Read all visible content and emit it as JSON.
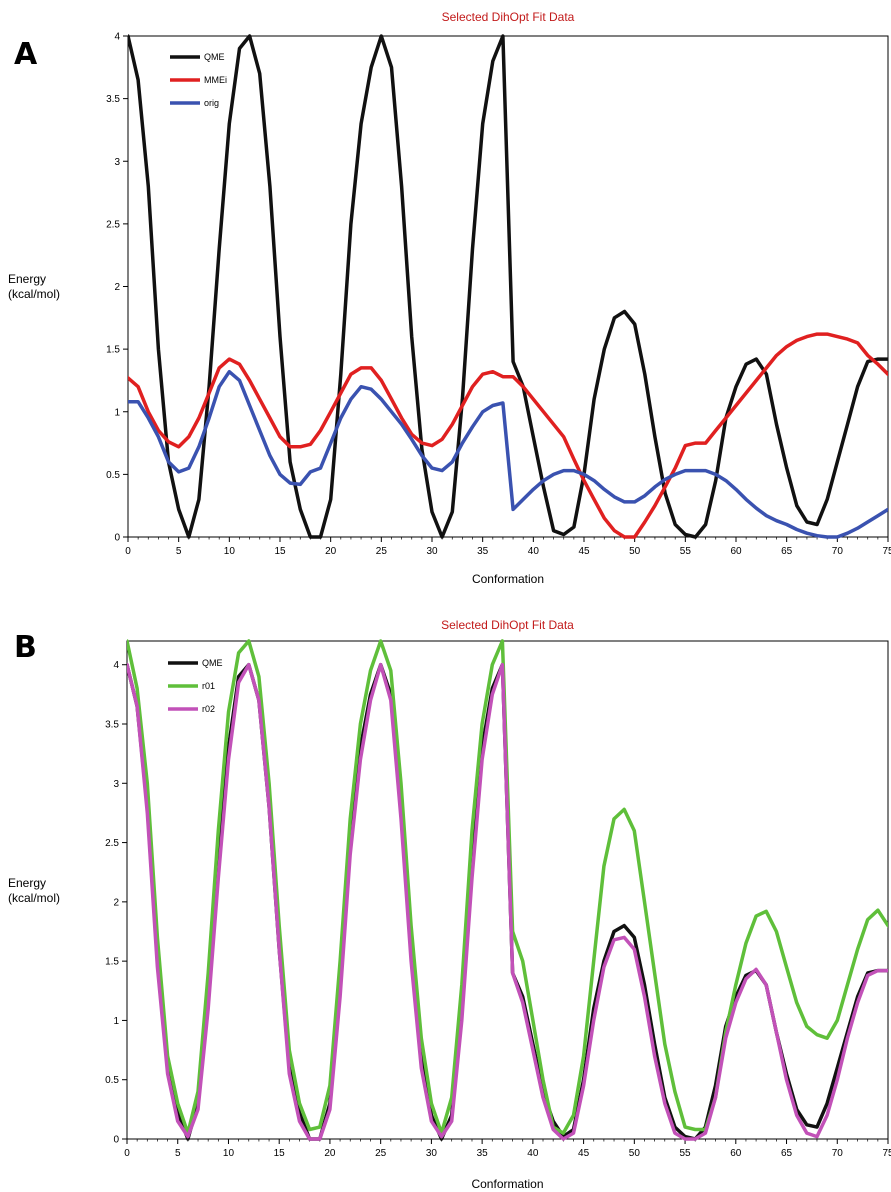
{
  "chart_data": [
    {
      "panel": "A",
      "type": "line",
      "title": "Selected DihOpt Fit Data",
      "xlabel": "Conformation",
      "ylabel": [
        "Energy",
        "(kcal/mol)"
      ],
      "xlim": [
        0,
        75
      ],
      "ylim": [
        0,
        4
      ],
      "xticks": [
        "0",
        "5",
        "10",
        "15",
        "20",
        "25",
        "30",
        "35",
        "40",
        "45",
        "50",
        "55",
        "60",
        "65",
        "70",
        "75"
      ],
      "yticks": [
        "0",
        "0.5",
        "1",
        "1.5",
        "2",
        "2.5",
        "3",
        "3.5",
        "4"
      ],
      "legend_position": "top-left",
      "series": [
        {
          "name": "QME",
          "color": "#111111",
          "x": [
            0,
            1,
            2,
            3,
            4,
            5,
            6,
            7,
            8,
            9,
            10,
            11,
            12,
            13,
            14,
            15,
            16,
            17,
            18,
            19,
            20,
            21,
            22,
            23,
            24,
            25,
            26,
            27,
            28,
            29,
            30,
            31,
            32,
            33,
            34,
            35,
            36,
            37,
            38,
            39,
            40,
            41,
            42,
            43,
            44,
            45,
            46,
            47,
            48,
            49,
            50,
            51,
            52,
            53,
            54,
            55,
            56,
            57,
            58,
            59,
            60,
            61,
            62,
            63,
            64,
            65,
            66,
            67,
            68,
            69,
            70,
            71,
            72,
            73,
            74,
            75
          ],
          "y": [
            4.0,
            3.65,
            2.8,
            1.5,
            0.6,
            0.22,
            0.0,
            0.3,
            1.2,
            2.3,
            3.3,
            3.9,
            4.0,
            3.7,
            2.8,
            1.6,
            0.6,
            0.22,
            0.0,
            0.0,
            0.3,
            1.3,
            2.5,
            3.3,
            3.75,
            4.0,
            3.75,
            2.8,
            1.6,
            0.7,
            0.2,
            0.0,
            0.2,
            1.1,
            2.3,
            3.3,
            3.8,
            4.0,
            1.4,
            1.2,
            0.8,
            0.4,
            0.05,
            0.02,
            0.08,
            0.5,
            1.1,
            1.5,
            1.75,
            1.8,
            1.7,
            1.3,
            0.8,
            0.35,
            0.1,
            0.02,
            0.0,
            0.1,
            0.45,
            0.95,
            1.2,
            1.38,
            1.42,
            1.3,
            0.9,
            0.55,
            0.25,
            0.12,
            0.1,
            0.3,
            0.6,
            0.9,
            1.2,
            1.4,
            1.42,
            1.42
          ]
        },
        {
          "name": "MMEi",
          "color": "#e02020",
          "x": [
            0,
            1,
            2,
            3,
            4,
            5,
            6,
            7,
            8,
            9,
            10,
            11,
            12,
            13,
            14,
            15,
            16,
            17,
            18,
            19,
            20,
            21,
            22,
            23,
            24,
            25,
            26,
            27,
            28,
            29,
            30,
            31,
            32,
            33,
            34,
            35,
            36,
            37,
            38,
            39,
            40,
            41,
            42,
            43,
            44,
            45,
            46,
            47,
            48,
            49,
            50,
            51,
            52,
            53,
            54,
            55,
            56,
            57,
            58,
            59,
            60,
            61,
            62,
            63,
            64,
            65,
            66,
            67,
            68,
            69,
            70,
            71,
            72,
            73,
            74,
            75
          ],
          "y": [
            1.27,
            1.2,
            1.0,
            0.85,
            0.76,
            0.72,
            0.8,
            0.95,
            1.15,
            1.35,
            1.42,
            1.38,
            1.25,
            1.1,
            0.95,
            0.8,
            0.72,
            0.72,
            0.74,
            0.85,
            1.0,
            1.15,
            1.3,
            1.35,
            1.35,
            1.25,
            1.1,
            0.95,
            0.82,
            0.75,
            0.73,
            0.78,
            0.9,
            1.05,
            1.2,
            1.3,
            1.32,
            1.28,
            1.28,
            1.2,
            1.1,
            1.0,
            0.9,
            0.8,
            0.62,
            0.45,
            0.3,
            0.15,
            0.05,
            0.0,
            0.0,
            0.12,
            0.25,
            0.4,
            0.55,
            0.73,
            0.75,
            0.75,
            0.85,
            0.95,
            1.05,
            1.15,
            1.25,
            1.35,
            1.45,
            1.52,
            1.57,
            1.6,
            1.62,
            1.62,
            1.6,
            1.58,
            1.55,
            1.45,
            1.38,
            1.3
          ]
        },
        {
          "name": "orig",
          "color": "#3a52b0",
          "x": [
            0,
            1,
            2,
            3,
            4,
            5,
            6,
            7,
            8,
            9,
            10,
            11,
            12,
            13,
            14,
            15,
            16,
            17,
            18,
            19,
            20,
            21,
            22,
            23,
            24,
            25,
            26,
            27,
            28,
            29,
            30,
            31,
            32,
            33,
            34,
            35,
            36,
            37,
            38,
            39,
            40,
            41,
            42,
            43,
            44,
            45,
            46,
            47,
            48,
            49,
            50,
            51,
            52,
            53,
            54,
            55,
            56,
            57,
            58,
            59,
            60,
            61,
            62,
            63,
            64,
            65,
            66,
            67,
            68,
            69,
            70,
            71,
            72,
            73,
            74,
            75
          ],
          "y": [
            1.08,
            1.08,
            0.95,
            0.8,
            0.6,
            0.52,
            0.55,
            0.72,
            0.95,
            1.2,
            1.32,
            1.25,
            1.05,
            0.85,
            0.65,
            0.5,
            0.43,
            0.42,
            0.52,
            0.55,
            0.75,
            0.95,
            1.1,
            1.2,
            1.18,
            1.1,
            1.0,
            0.9,
            0.78,
            0.65,
            0.55,
            0.53,
            0.6,
            0.75,
            0.88,
            1.0,
            1.05,
            1.07,
            0.22,
            0.3,
            0.38,
            0.45,
            0.5,
            0.53,
            0.53,
            0.5,
            0.45,
            0.38,
            0.32,
            0.28,
            0.28,
            0.33,
            0.4,
            0.46,
            0.5,
            0.53,
            0.53,
            0.53,
            0.5,
            0.45,
            0.38,
            0.3,
            0.23,
            0.17,
            0.13,
            0.1,
            0.06,
            0.03,
            0.01,
            0.0,
            0.0,
            0.03,
            0.07,
            0.12,
            0.17,
            0.22
          ]
        }
      ]
    },
    {
      "panel": "B",
      "type": "line",
      "title": "Selected DihOpt Fit Data",
      "xlabel": "Conformation",
      "ylabel": [
        "Energy",
        "(kcal/mol)"
      ],
      "xlim": [
        0,
        75
      ],
      "ylim": [
        0,
        4.2
      ],
      "xticks": [
        "0",
        "5",
        "10",
        "15",
        "20",
        "25",
        "30",
        "35",
        "40",
        "45",
        "50",
        "55",
        "60",
        "65",
        "70",
        "75"
      ],
      "yticks": [
        "0",
        "0.5",
        "1",
        "1.5",
        "2",
        "2.5",
        "3",
        "3.5",
        "4"
      ],
      "legend_position": "top-left",
      "series": [
        {
          "name": "QME",
          "color": "#111111",
          "x": [
            0,
            1,
            2,
            3,
            4,
            5,
            6,
            7,
            8,
            9,
            10,
            11,
            12,
            13,
            14,
            15,
            16,
            17,
            18,
            19,
            20,
            21,
            22,
            23,
            24,
            25,
            26,
            27,
            28,
            29,
            30,
            31,
            32,
            33,
            34,
            35,
            36,
            37,
            38,
            39,
            40,
            41,
            42,
            43,
            44,
            45,
            46,
            47,
            48,
            49,
            50,
            51,
            52,
            53,
            54,
            55,
            56,
            57,
            58,
            59,
            60,
            61,
            62,
            63,
            64,
            65,
            66,
            67,
            68,
            69,
            70,
            71,
            72,
            73,
            74,
            75
          ],
          "y": [
            4.0,
            3.65,
            2.8,
            1.5,
            0.6,
            0.22,
            0.0,
            0.3,
            1.2,
            2.3,
            3.3,
            3.9,
            4.0,
            3.7,
            2.8,
            1.6,
            0.6,
            0.22,
            0.0,
            0.0,
            0.3,
            1.3,
            2.5,
            3.3,
            3.75,
            4.0,
            3.75,
            2.8,
            1.6,
            0.7,
            0.2,
            0.0,
            0.2,
            1.1,
            2.3,
            3.3,
            3.8,
            4.0,
            1.4,
            1.2,
            0.8,
            0.4,
            0.15,
            0.02,
            0.08,
            0.5,
            1.1,
            1.5,
            1.75,
            1.8,
            1.7,
            1.3,
            0.8,
            0.35,
            0.1,
            0.02,
            0.0,
            0.1,
            0.45,
            0.95,
            1.2,
            1.38,
            1.42,
            1.3,
            0.9,
            0.55,
            0.25,
            0.12,
            0.1,
            0.3,
            0.6,
            0.9,
            1.2,
            1.4,
            1.42,
            1.42
          ]
        },
        {
          "name": "r01",
          "color": "#5fbf3a",
          "x": [
            0,
            1,
            2,
            3,
            4,
            5,
            6,
            7,
            8,
            9,
            10,
            11,
            12,
            13,
            14,
            15,
            16,
            17,
            18,
            19,
            20,
            21,
            22,
            23,
            24,
            25,
            26,
            27,
            28,
            29,
            30,
            31,
            32,
            33,
            34,
            35,
            36,
            37,
            38,
            39,
            40,
            41,
            42,
            43,
            44,
            45,
            46,
            47,
            48,
            49,
            50,
            51,
            52,
            53,
            54,
            55,
            56,
            57,
            58,
            59,
            60,
            61,
            62,
            63,
            64,
            65,
            66,
            67,
            68,
            69,
            70,
            71,
            72,
            73,
            74,
            75
          ],
          "y": [
            4.2,
            3.8,
            3.0,
            1.7,
            0.7,
            0.3,
            0.05,
            0.4,
            1.4,
            2.6,
            3.6,
            4.1,
            4.2,
            3.9,
            3.0,
            1.8,
            0.75,
            0.3,
            0.08,
            0.1,
            0.45,
            1.5,
            2.7,
            3.5,
            3.95,
            4.2,
            3.95,
            3.0,
            1.8,
            0.85,
            0.3,
            0.05,
            0.35,
            1.3,
            2.6,
            3.5,
            4.0,
            4.2,
            1.75,
            1.5,
            1.0,
            0.5,
            0.1,
            0.05,
            0.2,
            0.7,
            1.5,
            2.3,
            2.7,
            2.78,
            2.6,
            2.0,
            1.4,
            0.8,
            0.4,
            0.1,
            0.08,
            0.08,
            0.35,
            0.9,
            1.3,
            1.65,
            1.88,
            1.92,
            1.75,
            1.45,
            1.15,
            0.95,
            0.88,
            0.85,
            1.0,
            1.3,
            1.6,
            1.85,
            1.93,
            1.8
          ]
        },
        {
          "name": "r02",
          "color": "#c251b8",
          "x": [
            0,
            1,
            2,
            3,
            4,
            5,
            6,
            7,
            8,
            9,
            10,
            11,
            12,
            13,
            14,
            15,
            16,
            17,
            18,
            19,
            20,
            21,
            22,
            23,
            24,
            25,
            26,
            27,
            28,
            29,
            30,
            31,
            32,
            33,
            34,
            35,
            36,
            37,
            38,
            39,
            40,
            41,
            42,
            43,
            44,
            45,
            46,
            47,
            48,
            49,
            50,
            51,
            52,
            53,
            54,
            55,
            56,
            57,
            58,
            59,
            60,
            61,
            62,
            63,
            64,
            65,
            66,
            67,
            68,
            69,
            70,
            71,
            72,
            73,
            74,
            75
          ],
          "y": [
            4.0,
            3.65,
            2.75,
            1.45,
            0.55,
            0.15,
            0.02,
            0.25,
            1.1,
            2.2,
            3.2,
            3.85,
            4.0,
            3.7,
            2.8,
            1.6,
            0.55,
            0.15,
            0.0,
            0.0,
            0.25,
            1.2,
            2.4,
            3.2,
            3.7,
            4.0,
            3.7,
            2.7,
            1.5,
            0.6,
            0.15,
            0.02,
            0.15,
            1.0,
            2.2,
            3.2,
            3.75,
            4.0,
            1.4,
            1.15,
            0.75,
            0.35,
            0.08,
            0.0,
            0.05,
            0.45,
            1.0,
            1.45,
            1.68,
            1.7,
            1.6,
            1.2,
            0.7,
            0.3,
            0.05,
            0.0,
            0.0,
            0.05,
            0.35,
            0.85,
            1.15,
            1.35,
            1.43,
            1.3,
            0.9,
            0.5,
            0.2,
            0.05,
            0.02,
            0.2,
            0.5,
            0.85,
            1.15,
            1.38,
            1.42,
            1.42
          ]
        }
      ]
    }
  ]
}
